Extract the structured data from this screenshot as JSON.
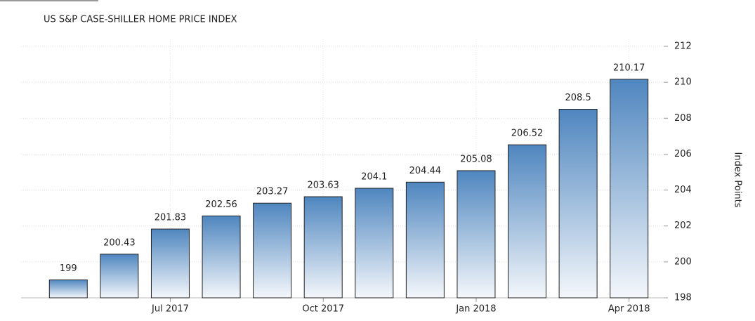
{
  "chart_data": {
    "type": "bar",
    "title": "US S&P CASE-SHILLER HOME PRICE INDEX",
    "y_label": "Index Points",
    "categories": [
      null,
      null,
      "Jul 2017",
      null,
      null,
      "Oct 2017",
      null,
      null,
      "Jan 2018",
      null,
      null,
      "Apr 2018"
    ],
    "values": [
      199,
      200.43,
      201.83,
      202.56,
      203.27,
      203.63,
      204.1,
      204.44,
      205.08,
      206.52,
      208.5,
      210.17
    ],
    "color": "#4f86bf",
    "ylim": [
      198,
      212
    ],
    "yticks": [
      198,
      200,
      202,
      204,
      206,
      208,
      210,
      212
    ],
    "grid": true
  }
}
